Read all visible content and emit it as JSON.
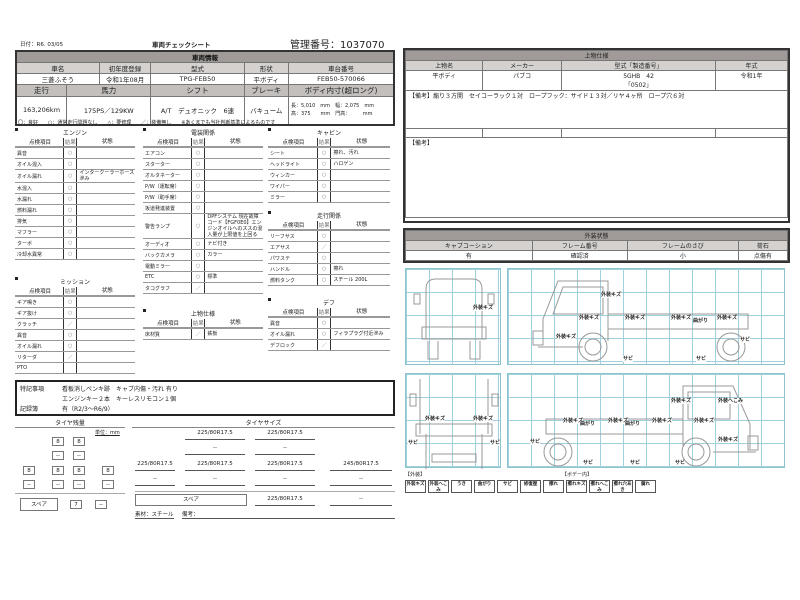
{
  "header": {
    "date": "日付：R6. 03/05",
    "title": "車両チェックシート",
    "mgmt_no": "管理番号：1037070"
  },
  "vehicle": {
    "title": "車両情報",
    "labels1": [
      "車名",
      "初年度登録",
      "型式",
      "形状",
      "車台番号"
    ],
    "values1": [
      "三菱ふそう",
      "令和1年08月",
      "TPG-FEB50",
      "平ボディ",
      "FEB50-570066"
    ],
    "labels2": [
      "走行",
      "馬力",
      "シフト",
      "ブレーキ",
      "ボディ内寸(超ロング)"
    ],
    "values2": [
      "163,206km",
      "175PS／129KW",
      "A/T　デュオニック　6速",
      "バキューム"
    ],
    "dims": [
      "長：5,010　mm　幅：2,075　mm",
      "高：375　　mm　門高：　　　mm"
    ]
  },
  "legend": "〇：良好　　○：通常走行問題なし　　△：要修理　　／：装備無し　　※あくまでも当社判断基準によるものです",
  "col_headers": [
    "点検項目",
    "結果",
    "状態"
  ],
  "checks": {
    "engine": {
      "title": "エンジン",
      "rows": [
        [
          "異音",
          "○",
          ""
        ],
        [
          "オイル混入",
          "○",
          ""
        ],
        [
          "オイル漏れ",
          "○",
          "インタークーラーホース 滲み"
        ],
        [
          "水混入",
          "○",
          ""
        ],
        [
          "水漏れ",
          "○",
          ""
        ],
        [
          "燃料漏れ",
          "○",
          ""
        ],
        [
          "排気",
          "○",
          ""
        ],
        [
          "マフラー",
          "○",
          ""
        ],
        [
          "ターボ",
          "○",
          ""
        ],
        [
          "冷却水異常",
          "○",
          ""
        ]
      ]
    },
    "electrical": {
      "title": "電装関係",
      "rows": [
        [
          "エアコン",
          "○",
          ""
        ],
        [
          "スターター",
          "○",
          ""
        ],
        [
          "オルタネーター",
          "○",
          ""
        ],
        [
          "P/W（運転席）",
          "○",
          ""
        ],
        [
          "P/W（助手席）",
          "○",
          ""
        ],
        [
          "坂道発進装置",
          "○",
          ""
        ],
        [
          "警告ランプ",
          "○",
          "DPFシステム 現在故障コード【FGF0E0】エンジンオイルへのススの混入量が上限値を上回る"
        ],
        [
          "オーディオ",
          "○",
          "ナビ付き"
        ],
        [
          "バックカメラ",
          "○",
          "カラー"
        ],
        [
          "電動ミラー",
          "○",
          ""
        ],
        [
          "ETC",
          "○",
          "標準"
        ],
        [
          "タコグラフ",
          "／",
          ""
        ]
      ]
    },
    "cabin": {
      "title": "キャビン",
      "rows": [
        [
          "シート",
          "○",
          "擦れ、汚れ"
        ],
        [
          "ヘッドライト",
          "○",
          "ハロゲン"
        ],
        [
          "ウィンカー",
          "○",
          ""
        ],
        [
          "ワイパー",
          "○",
          ""
        ],
        [
          "ミラー",
          "○",
          ""
        ]
      ]
    },
    "running": {
      "title": "走行関係",
      "rows": [
        [
          "リーフサス",
          "○",
          ""
        ],
        [
          "エアサス",
          "／",
          ""
        ],
        [
          "パワステ",
          "○",
          ""
        ],
        [
          "ハンドル",
          "○",
          "擦れ"
        ],
        [
          "燃料タンク",
          "○",
          "スチール 200L"
        ]
      ]
    },
    "mission": {
      "title": "ミッション",
      "rows": [
        [
          "ギア鳴き",
          "○",
          ""
        ],
        [
          "ギア抜け",
          "○",
          ""
        ],
        [
          "クラッチ",
          "／",
          ""
        ],
        [
          "異音",
          "○",
          ""
        ],
        [
          "オイル漏れ",
          "○",
          ""
        ],
        [
          "リターダ",
          "／",
          ""
        ],
        [
          "PTO",
          "",
          ""
        ]
      ]
    },
    "body": {
      "title": "上物仕様",
      "rows": [
        [
          "床材質",
          "／",
          "鉄板"
        ]
      ]
    },
    "diff": {
      "title": "デフ",
      "rows": [
        [
          "異音",
          "○",
          ""
        ],
        [
          "オイル漏れ",
          "○",
          "フィラプラグ付近滲み"
        ],
        [
          "デフロック",
          "／",
          ""
        ]
      ]
    }
  },
  "remarks": {
    "label1": "特記事項",
    "line1": "看板消しペンキ跡　キャブ内傷・汚れ 有り",
    "line2": "エンジンキー２本　キーレスリモコン１個",
    "label2": "記録簿",
    "line3": "有（R2/3～R6/9）"
  },
  "tire": {
    "remain_title": "タイヤ残量",
    "unit": "単位：mm",
    "front": [
      "8",
      "8"
    ],
    "front_sub": [
      "--",
      "--"
    ],
    "rear": [
      "8",
      "8",
      "8",
      "8"
    ],
    "rear_sub": [
      "--",
      "--",
      "--",
      "--"
    ],
    "spare_label": "スペア",
    "spare": "7",
    "spare_sub": "--",
    "size_title": "タイヤサイズ",
    "front_sizes": [
      "225/80R17.5",
      "225/80R17.5"
    ],
    "front_sub_sizes": [
      "--",
      "--"
    ],
    "rear_sizes": [
      "225/80R17.5",
      "225/80R17.5",
      "225/80R17.5",
      "245/80R17.5"
    ],
    "rear_sub_sizes": [
      "--",
      "--",
      "--",
      "--"
    ],
    "spare_size": "225/80R17.5",
    "spare_size_sub": "--",
    "material": "素材：スチール",
    "note": "備考："
  },
  "upper": {
    "title": "上物仕様",
    "labels": [
      "上物名",
      "メーカー",
      "型式「製造番号」",
      "年式"
    ],
    "values": [
      "平ボディ",
      "パブコ",
      "5GHB　42",
      "令和1年"
    ],
    "serial": "「0502」",
    "note1": "【備考】煽り３方開　セイコーラック１対　ロープフック：サイド１３対／リヤ４ヶ所　ロープ穴６対",
    "note2": "【備考】"
  },
  "exterior": {
    "title": "外装状態",
    "labels": [
      "キャブコーション",
      "フレーム番号",
      "フレームのさび",
      "荷石"
    ],
    "values": [
      "有",
      "確認済",
      "小",
      "点傷有"
    ]
  },
  "diagrams": {
    "front": [
      "外装キズ"
    ],
    "left": [
      "外装キズ",
      "外装キズ",
      "外装キズ",
      "外装キズ",
      "曲がり",
      "外装キズ",
      "外装キズ",
      "サビ",
      "サビ",
      "サビ"
    ],
    "rear": [
      "外装キズ",
      "外装キズ",
      "サビ",
      "サビ"
    ],
    "right": [
      "外装キズ",
      "外装へこみ",
      "外装キズ",
      "曲がり",
      "外装キズ",
      "曲がり",
      "外装キズ",
      "外装キズ",
      "外装キズ",
      "サビ",
      "サビ",
      "サビ",
      "サビ"
    ]
  },
  "damage_legend": {
    "exterior_label": "【外装】",
    "body_label": "【ボデー内】",
    "items": [
      "外装キズ",
      "外装へこみ",
      "うき",
      "曲がり",
      "サビ",
      "修復歴",
      "擦れ",
      "擦れキズ",
      "擦れへこみ",
      "擦れ穴あき",
      "腐れ"
    ]
  },
  "colors": {
    "header_gray": "#a09b98",
    "grid": "#9fd0db"
  }
}
